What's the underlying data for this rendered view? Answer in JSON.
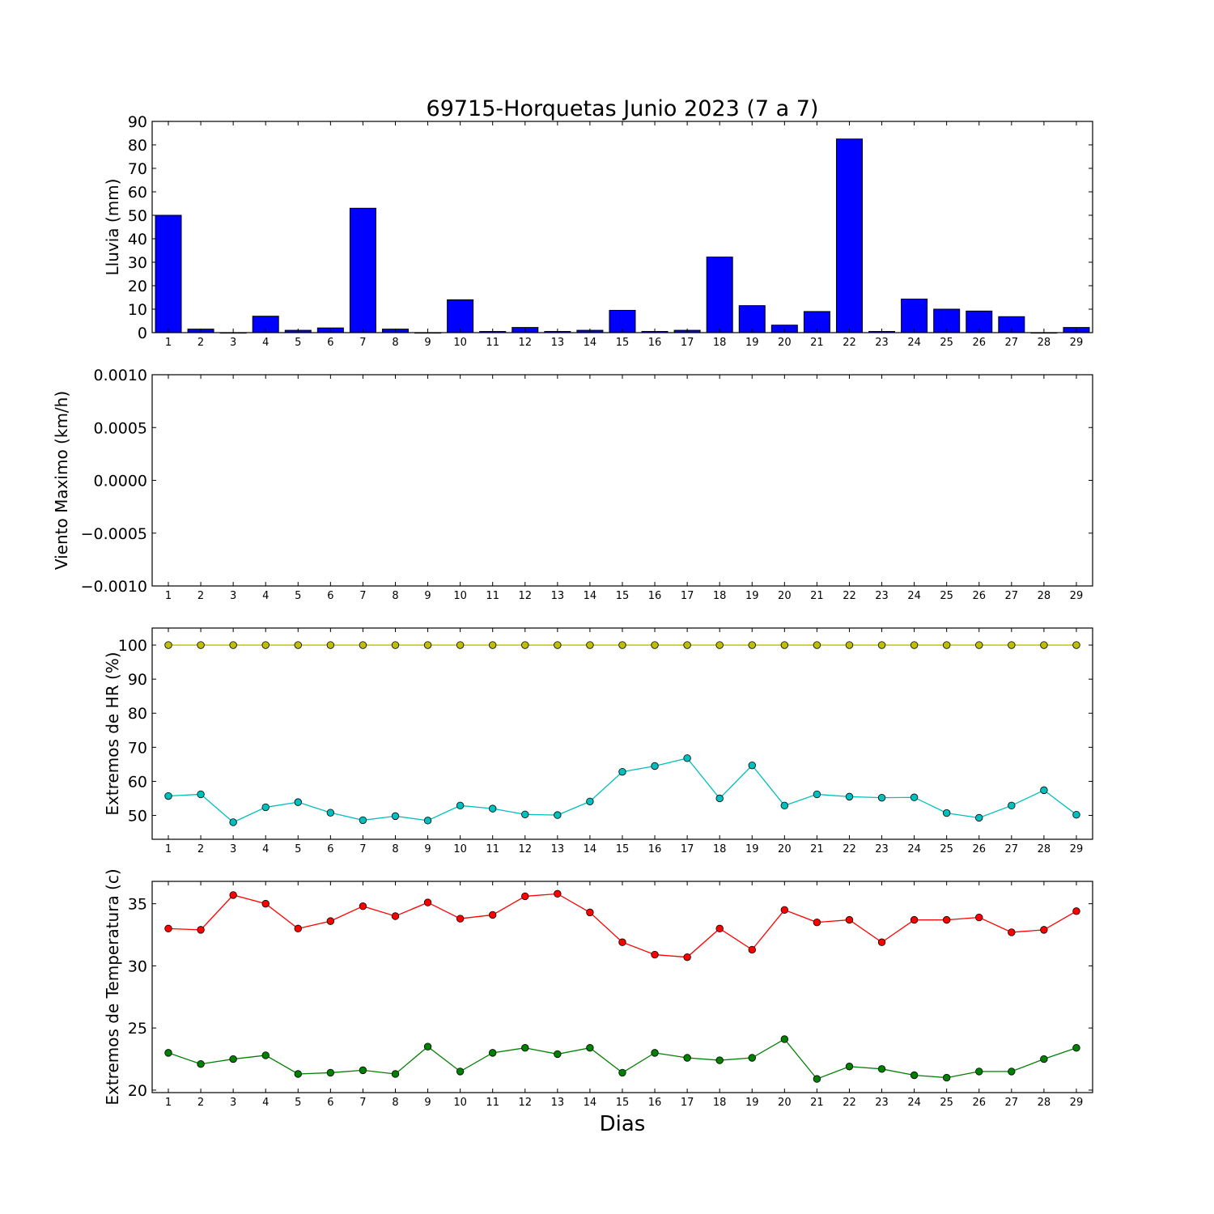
{
  "title": "69715-Horquetas Junio 2023  (7 a 7)",
  "xlabel": "Dias",
  "chart_data": [
    {
      "type": "bar",
      "ylabel": "Lluvia (mm)",
      "ylim": [
        0,
        90
      ],
      "yticks": [
        "0",
        "10",
        "20",
        "30",
        "40",
        "50",
        "60",
        "70",
        "80",
        "90"
      ],
      "categories": [
        "1",
        "2",
        "3",
        "4",
        "5",
        "6",
        "7",
        "8",
        "9",
        "10",
        "11",
        "12",
        "13",
        "14",
        "15",
        "16",
        "17",
        "18",
        "19",
        "20",
        "21",
        "22",
        "23",
        "24",
        "25",
        "26",
        "27",
        "28",
        "29"
      ],
      "series": [
        {
          "color": "#0000ff",
          "values": [
            50,
            1.5,
            0,
            7,
            1,
            2,
            53,
            1.5,
            0,
            14,
            0.5,
            2.2,
            0.5,
            1,
            9.5,
            0.5,
            1,
            32.2,
            11.5,
            3.2,
            9,
            82.5,
            0.5,
            14.3,
            10,
            9.2,
            6.8,
            0,
            2.2
          ]
        }
      ]
    },
    {
      "type": "line",
      "ylabel": "Viento Maximo (km/h)",
      "ylim": [
        -0.001,
        0.001
      ],
      "yticks": [
        "−0.0010",
        "−0.0005",
        "0.0000",
        "0.0005",
        "0.0010"
      ],
      "categories": [
        "1",
        "2",
        "3",
        "4",
        "5",
        "6",
        "7",
        "8",
        "9",
        "10",
        "11",
        "12",
        "13",
        "14",
        "15",
        "16",
        "17",
        "18",
        "19",
        "20",
        "21",
        "22",
        "23",
        "24",
        "25",
        "26",
        "27",
        "28",
        "29"
      ],
      "series": []
    },
    {
      "type": "line",
      "ylabel": "Extremos de HR (%)",
      "ylim": [
        43,
        105
      ],
      "yticks": [
        "50",
        "60",
        "70",
        "80",
        "90",
        "100"
      ],
      "categories": [
        "1",
        "2",
        "3",
        "4",
        "5",
        "6",
        "7",
        "8",
        "9",
        "10",
        "11",
        "12",
        "13",
        "14",
        "15",
        "16",
        "17",
        "18",
        "19",
        "20",
        "21",
        "22",
        "23",
        "24",
        "25",
        "26",
        "27",
        "28",
        "29"
      ],
      "series": [
        {
          "color": "#bfbf00",
          "values": [
            100,
            100,
            100,
            100,
            100,
            100,
            100,
            100,
            100,
            100,
            100,
            100,
            100,
            100,
            100,
            100,
            100,
            100,
            100,
            100,
            100,
            100,
            100,
            100,
            100,
            100,
            100,
            100,
            100
          ]
        },
        {
          "color": "#00bfbf",
          "values": [
            55.7,
            56.2,
            48,
            52.4,
            53.9,
            50.8,
            48.6,
            49.8,
            48.5,
            52.9,
            52,
            50.3,
            50.1,
            54.1,
            62.8,
            64.5,
            66.8,
            55,
            64.7,
            52.9,
            56.2,
            55.5,
            55.2,
            55.3,
            50.7,
            49.3,
            52.9,
            57.4,
            50.2
          ]
        }
      ]
    },
    {
      "type": "line",
      "ylabel": "Extremos de Temperatura (c)",
      "ylim": [
        19.8,
        36.8
      ],
      "yticks": [
        "20",
        "25",
        "30",
        "35"
      ],
      "categories": [
        "1",
        "2",
        "3",
        "4",
        "5",
        "6",
        "7",
        "8",
        "9",
        "10",
        "11",
        "12",
        "13",
        "14",
        "15",
        "16",
        "17",
        "18",
        "19",
        "20",
        "21",
        "22",
        "23",
        "24",
        "25",
        "26",
        "27",
        "28",
        "29"
      ],
      "series": [
        {
          "color": "#ff0000",
          "values": [
            33,
            32.9,
            35.7,
            35,
            33,
            33.6,
            34.8,
            34,
            35.1,
            33.8,
            34.1,
            35.6,
            35.8,
            34.3,
            31.9,
            30.9,
            30.7,
            33,
            31.3,
            34.5,
            33.5,
            33.7,
            31.9,
            33.7,
            33.7,
            33.9,
            32.7,
            32.9,
            34.4
          ]
        },
        {
          "color": "#008000",
          "values": [
            23,
            22.1,
            22.5,
            22.8,
            21.3,
            21.4,
            21.6,
            21.3,
            23.5,
            21.5,
            23,
            23.4,
            22.9,
            23.4,
            21.4,
            23,
            22.6,
            22.4,
            22.6,
            24.1,
            20.9,
            21.9,
            21.7,
            21.2,
            21,
            21.5,
            21.5,
            22.5,
            23.4
          ]
        }
      ]
    }
  ]
}
